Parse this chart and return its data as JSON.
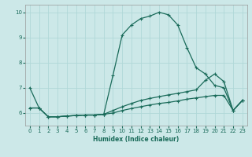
{
  "title": "",
  "xlabel": "Humidex (Indice chaleur)",
  "xlim": [
    -0.5,
    23.5
  ],
  "ylim": [
    5.5,
    10.3
  ],
  "bg_color": "#cce8e8",
  "grid_color": "#b0d8d8",
  "line_color": "#1a6b5a",
  "xticks": [
    0,
    1,
    2,
    3,
    4,
    5,
    6,
    7,
    8,
    9,
    10,
    11,
    12,
    13,
    14,
    15,
    16,
    17,
    18,
    19,
    20,
    21,
    22,
    23
  ],
  "yticks": [
    6,
    7,
    8,
    9,
    10
  ],
  "lines": [
    {
      "x": [
        0,
        1,
        2,
        3,
        4,
        5,
        6,
        7,
        8,
        9,
        10,
        11,
        12,
        13,
        14,
        15,
        16,
        17,
        18,
        19,
        20,
        21,
        22,
        23
      ],
      "y": [
        7.0,
        6.2,
        5.85,
        5.85,
        5.88,
        5.9,
        5.92,
        5.92,
        5.95,
        7.5,
        9.1,
        9.5,
        9.75,
        9.85,
        10.0,
        9.9,
        9.5,
        8.6,
        7.8,
        7.55,
        7.1,
        7.0,
        6.1,
        6.5
      ]
    },
    {
      "x": [
        0,
        1,
        2,
        3,
        4,
        5,
        6,
        7,
        8,
        9,
        10,
        11,
        12,
        13,
        14,
        15,
        16,
        17,
        18,
        19,
        20,
        21,
        22,
        23
      ],
      "y": [
        6.2,
        6.2,
        5.85,
        5.85,
        5.88,
        5.9,
        5.92,
        5.92,
        5.95,
        6.1,
        6.25,
        6.38,
        6.5,
        6.58,
        6.65,
        6.72,
        6.78,
        6.85,
        6.92,
        7.3,
        7.55,
        7.25,
        6.1,
        6.5
      ]
    },
    {
      "x": [
        0,
        1,
        2,
        3,
        4,
        5,
        6,
        7,
        8,
        9,
        10,
        11,
        12,
        13,
        14,
        15,
        16,
        17,
        18,
        19,
        20,
        21,
        22,
        23
      ],
      "y": [
        6.2,
        6.2,
        5.85,
        5.85,
        5.88,
        5.9,
        5.92,
        5.92,
        5.95,
        6.0,
        6.1,
        6.18,
        6.25,
        6.32,
        6.38,
        6.42,
        6.48,
        6.55,
        6.6,
        6.65,
        6.7,
        6.7,
        6.1,
        6.5
      ]
    }
  ]
}
